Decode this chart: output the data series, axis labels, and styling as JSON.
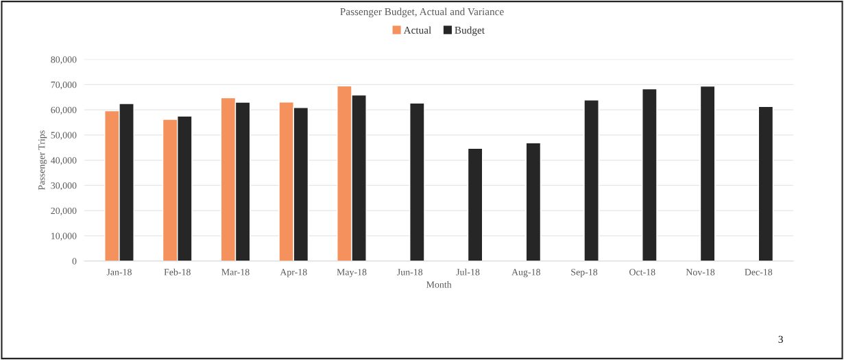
{
  "chart_data": {
    "type": "bar",
    "title": "Passenger Budget, Actual and Variance",
    "xlabel": "Month",
    "ylabel": "Passenger Trips",
    "categories": [
      "Jan-18",
      "Feb-18",
      "Mar-18",
      "Apr-18",
      "May-18",
      "Jun-18",
      "Jul-18",
      "Aug-18",
      "Sep-18",
      "Oct-18",
      "Nov-18",
      "Dec-18"
    ],
    "series": [
      {
        "name": "Actual",
        "color": "#f4915c",
        "values": [
          59600,
          56200,
          64800,
          63100,
          69500,
          null,
          null,
          null,
          null,
          null,
          null,
          null
        ]
      },
      {
        "name": "Budget",
        "color": "#262626",
        "values": [
          62500,
          57500,
          63000,
          60900,
          65900,
          62700,
          44700,
          46900,
          63900,
          68300,
          69400,
          61300
        ]
      }
    ],
    "ylim": [
      0,
      80000
    ],
    "yticks": [
      {
        "value": 0,
        "label": "0"
      },
      {
        "value": 10000,
        "label": "10,000"
      },
      {
        "value": 20000,
        "label": "20,000"
      },
      {
        "value": 30000,
        "label": "30,000"
      },
      {
        "value": 40000,
        "label": "40,000"
      },
      {
        "value": 50000,
        "label": "50,000"
      },
      {
        "value": 60000,
        "label": "60,000"
      },
      {
        "value": 70000,
        "label": "70,000"
      },
      {
        "value": 80000,
        "label": "80,000"
      }
    ],
    "grid": "y",
    "legend": "top",
    "annotations": [
      "3"
    ]
  }
}
